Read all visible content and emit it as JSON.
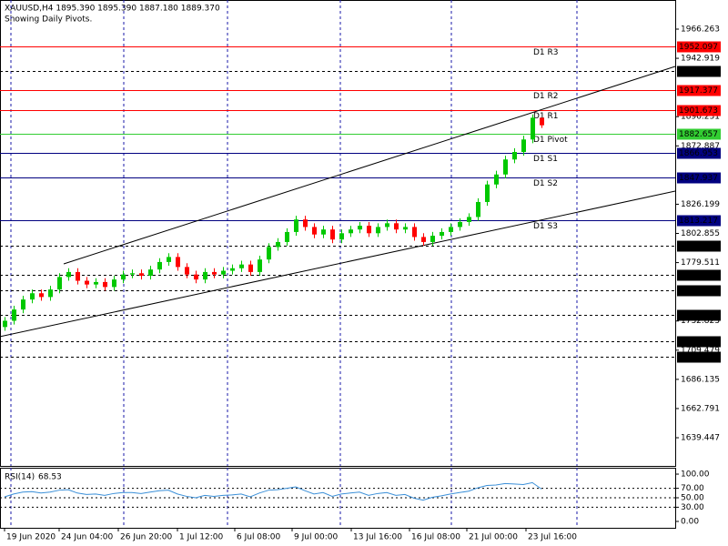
{
  "chart_data": {
    "type": "candlestick",
    "title": "XAUUSD,H4  1895.390 1895.390 1887.180 1889.370",
    "subtitle": "Showing Daily Pivots.",
    "up_color": "#00c800",
    "down_color": "#ff0000",
    "ylim": [
      1616.9,
      1989.55
    ],
    "xlim": [
      -0.5,
      73.7
    ],
    "yticks": [
      1966.263,
      1942.919,
      1896.231,
      1872.887,
      1826.199,
      1802.855,
      1779.511,
      1732.823,
      1709.479,
      1686.135,
      1662.791,
      1639.447
    ],
    "xticks": [
      {
        "value": 0,
        "label": "19 Jun 2020"
      },
      {
        "value": 6,
        "label": "24 Jun 04:00"
      },
      {
        "value": 12.5,
        "label": "26 Jun 20:00"
      },
      {
        "value": 19,
        "label": "1 Jul 12:00"
      },
      {
        "value": 25.3,
        "label": "6 Jul 08:00"
      },
      {
        "value": 31.6,
        "label": "9 Jul 00:00"
      },
      {
        "value": 38.1,
        "label": "13 Jul 16:00"
      },
      {
        "value": 44.5,
        "label": "16 Jul 08:00"
      },
      {
        "value": 50.8,
        "label": "21 Jul 00:00"
      },
      {
        "value": 57.3,
        "label": "23 Jul 16:00"
      }
    ],
    "xgrid": [
      0.7,
      13.1,
      24.5,
      36.9,
      49.1,
      62.9
    ],
    "grid_color": "#1a1aa8",
    "ohlc": [
      [
        1728,
        1736,
        1725,
        1733
      ],
      [
        1733,
        1745,
        1730,
        1742
      ],
      [
        1742,
        1753,
        1739,
        1750
      ],
      [
        1750,
        1758,
        1747,
        1755
      ],
      [
        1755,
        1758,
        1749,
        1752
      ],
      [
        1752,
        1761,
        1749,
        1758
      ],
      [
        1758,
        1771,
        1755,
        1768
      ],
      [
        1768,
        1775,
        1765,
        1772
      ],
      [
        1772,
        1775,
        1762,
        1765
      ],
      [
        1765,
        1768,
        1759,
        1762
      ],
      [
        1762,
        1767,
        1759,
        1764
      ],
      [
        1764,
        1767,
        1757,
        1760
      ],
      [
        1760,
        1769,
        1757,
        1766
      ],
      [
        1766,
        1773,
        1763,
        1770
      ],
      [
        1770,
        1774,
        1767,
        1771
      ],
      [
        1771,
        1774,
        1766,
        1769
      ],
      [
        1769,
        1777,
        1766,
        1774
      ],
      [
        1774,
        1783,
        1771,
        1780
      ],
      [
        1780,
        1787,
        1777,
        1784
      ],
      [
        1784,
        1787,
        1773,
        1776
      ],
      [
        1776,
        1779,
        1767,
        1770
      ],
      [
        1770,
        1773,
        1763,
        1766
      ],
      [
        1766,
        1775,
        1763,
        1772
      ],
      [
        1772,
        1775,
        1767,
        1770
      ],
      [
        1770,
        1776,
        1767,
        1773
      ],
      [
        1773,
        1778,
        1770,
        1775
      ],
      [
        1775,
        1781,
        1772,
        1778
      ],
      [
        1778,
        1781,
        1769,
        1772
      ],
      [
        1772,
        1785,
        1769,
        1782
      ],
      [
        1782,
        1795,
        1779,
        1792
      ],
      [
        1792,
        1799,
        1789,
        1796
      ],
      [
        1796,
        1807,
        1793,
        1804
      ],
      [
        1804,
        1817,
        1801,
        1814
      ],
      [
        1814,
        1817,
        1805,
        1808
      ],
      [
        1808,
        1811,
        1799,
        1802
      ],
      [
        1802,
        1809,
        1799,
        1806
      ],
      [
        1806,
        1809,
        1795,
        1798
      ],
      [
        1798,
        1806,
        1795,
        1803
      ],
      [
        1803,
        1809,
        1800,
        1806
      ],
      [
        1806,
        1812,
        1803,
        1809
      ],
      [
        1809,
        1812,
        1800,
        1803
      ],
      [
        1803,
        1811,
        1800,
        1808
      ],
      [
        1808,
        1814,
        1805,
        1811
      ],
      [
        1811,
        1814,
        1803,
        1806
      ],
      [
        1806,
        1811,
        1803,
        1808
      ],
      [
        1808,
        1811,
        1797,
        1800
      ],
      [
        1800,
        1803,
        1793,
        1796
      ],
      [
        1796,
        1804,
        1793,
        1801
      ],
      [
        1801,
        1807,
        1798,
        1804
      ],
      [
        1804,
        1811,
        1801,
        1808
      ],
      [
        1808,
        1815,
        1805,
        1812
      ],
      [
        1812,
        1819,
        1809,
        1816
      ],
      [
        1816,
        1831,
        1813,
        1828
      ],
      [
        1828,
        1845,
        1825,
        1842
      ],
      [
        1842,
        1853,
        1839,
        1850
      ],
      [
        1850,
        1865,
        1847,
        1862
      ],
      [
        1862,
        1871,
        1859,
        1868
      ],
      [
        1868,
        1881,
        1865,
        1878
      ],
      [
        1878,
        1898,
        1875,
        1895.39
      ],
      [
        1895.39,
        1895.39,
        1887.18,
        1889.37
      ]
    ],
    "levels": [
      {
        "name": "D1 R3",
        "value": 1952.097,
        "color": "#ff0000",
        "style": "solid"
      },
      {
        "value": {
          "value": 1932.87,
          "label": "1932.870"
        },
        "color": "#000000",
        "style": "dashed"
      },
      {
        "name": "D1 R2",
        "value": 1917.377,
        "color": "#ff0000",
        "style": "solid"
      },
      {
        "name": "D1 R1",
        "value": 1901.673,
        "color": "#ff0000",
        "style": "solid"
      },
      {
        "name": "D1 Pivot",
        "value": 1882.657,
        "color": "#32cd32",
        "style": "solid"
      },
      {
        "name": "D1 S1",
        "value": 1866.953,
        "color": "#000080",
        "style": "solid"
      },
      {
        "name": "D1 S2",
        "value": 1847.937,
        "color": "#000080",
        "style": "solid"
      },
      {
        "name": "D1 S3",
        "value": 1813.217,
        "color": "#000080",
        "style": "solid"
      },
      {
        "value": 1792.959,
        "color": "#000000",
        "style": "dashed"
      },
      {
        "value": 1769.754,
        "color": "#000000",
        "style": "dashed"
      },
      {
        "value": 1757.301,
        "color": "#000000",
        "style": "dashed"
      },
      {
        "value": 1737.786,
        "color": "#000000",
        "style": "dashed"
      },
      {
        "value": 1716.612,
        "color": "#000000",
        "style": "dashed"
      },
      {
        "value": 1704.034,
        "color": "#000000",
        "style": "dashed"
      }
    ],
    "trendlines": [
      {
        "x": [
          6.5,
          73.7
        ],
        "values": [
          1778.5,
          1936.4
        ]
      },
      {
        "x": [
          -0.5,
          73.7
        ],
        "values": [
          1720.3,
          1836.7
        ]
      }
    ],
    "rsi": {
      "title": "RSI(14)",
      "color": "#3a8fd8",
      "ylim": [
        -13.5,
        113.5
      ],
      "yticks": [
        {
          "value": 100,
          "label": "100.00"
        },
        {
          "value": 70,
          "label": "70.00"
        },
        {
          "value": 50,
          "label": "50.00"
        },
        {
          "value": 30,
          "label": "30.00"
        },
        {
          "value": 0,
          "label": "0.00"
        }
      ],
      "values": [
        52,
        58,
        62,
        63,
        60,
        62,
        66,
        67,
        60,
        57,
        58,
        55,
        59,
        61,
        61,
        59,
        62,
        65,
        66,
        58,
        53,
        50,
        55,
        53,
        55,
        56,
        58,
        52,
        60,
        66,
        67,
        70,
        73,
        65,
        58,
        61,
        53,
        58,
        60,
        62,
        55,
        59,
        61,
        55,
        57,
        49,
        45,
        51,
        54,
        58,
        61,
        64,
        71,
        76,
        77,
        80,
        79,
        78,
        82,
        68.53
      ]
    }
  }
}
